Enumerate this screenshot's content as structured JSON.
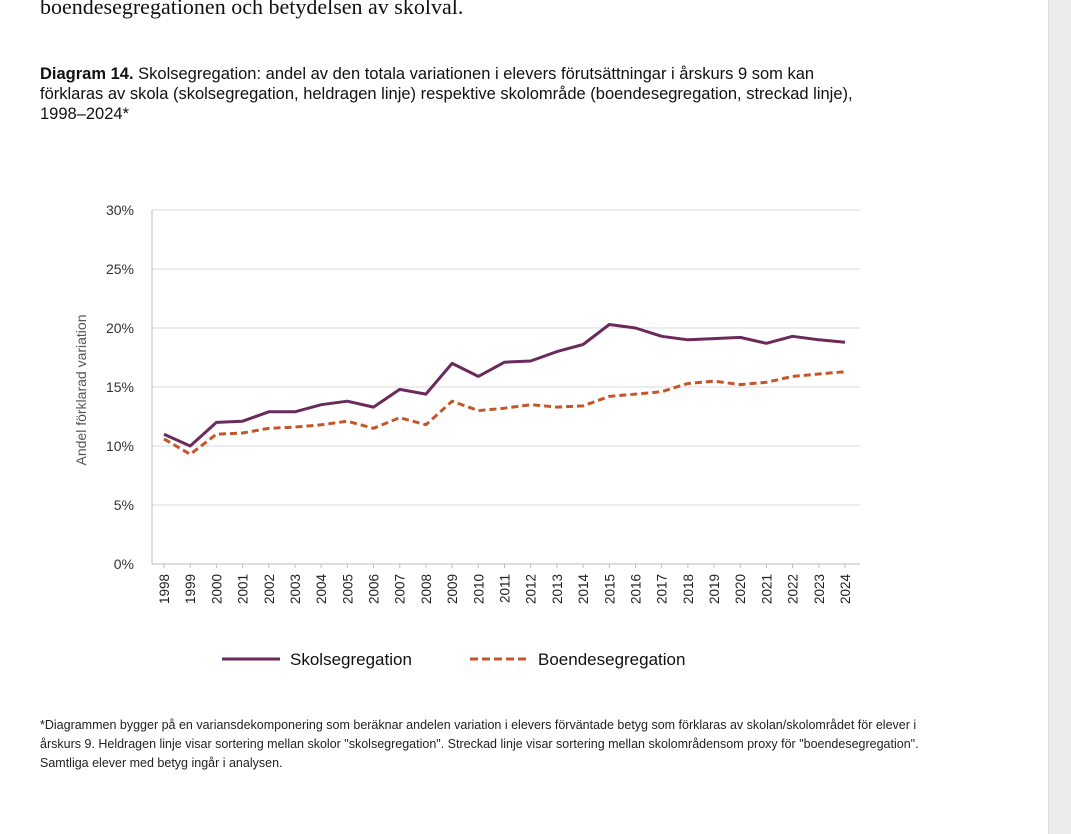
{
  "intro_text": "boendesegregationen och betydelsen av skolval.",
  "caption": {
    "label": "Diagram 14.",
    "text": "Skolsegregation: andel av den totala variationen i elevers förutsättningar i årskurs 9 som kan förklaras av skola (skolsegregation, heldragen linje) respektive skolområde (boendesegregation, streckad linje), 1998–2024*"
  },
  "footnote": "*Diagrammen bygger på en variansdekomponering som beräknar andelen variation i elevers förväntade betyg som förklaras av skolan/skolområdet för elever i årskurs 9. Heldragen linje visar sortering mellan skolor \"skolsegregation\". Streckad linje visar sortering mellan skolområdensom proxy för \"boendesegregation\". Samtliga elever med betyg ingår i analysen.",
  "chart_data": {
    "type": "line",
    "title": "",
    "xlabel": "",
    "ylabel": "Andel förklarad variation",
    "ylim": [
      0,
      30
    ],
    "y_ticks": [
      0,
      5,
      10,
      15,
      20,
      25,
      30
    ],
    "y_tick_labels": [
      "0%",
      "5%",
      "10%",
      "15%",
      "20%",
      "25%",
      "30%"
    ],
    "grid": true,
    "legend_position": "bottom",
    "categories": [
      "1998",
      "1999",
      "2000",
      "2001",
      "2002",
      "2003",
      "2004",
      "2005",
      "2006",
      "2007",
      "2008",
      "2009",
      "2010",
      "2011",
      "2012",
      "2013",
      "2014",
      "2015",
      "2016",
      "2017",
      "2018",
      "2019",
      "2020",
      "2021",
      "2022",
      "2023",
      "2024"
    ],
    "series": [
      {
        "name": "Skolsegregation",
        "style": "solid",
        "color": "#6b2a5c",
        "values": [
          11.0,
          10.0,
          12.0,
          12.1,
          12.9,
          12.9,
          13.5,
          13.8,
          13.3,
          14.8,
          14.4,
          17.0,
          15.9,
          17.1,
          17.2,
          18.0,
          18.6,
          20.3,
          20.0,
          19.3,
          19.0,
          19.1,
          19.2,
          18.7,
          19.3,
          19.0,
          18.8
        ]
      },
      {
        "name": "Boendesegregation",
        "style": "dashed",
        "color": "#c5562a",
        "values": [
          10.6,
          9.3,
          11.0,
          11.1,
          11.5,
          11.6,
          11.8,
          12.1,
          11.5,
          12.4,
          11.8,
          13.8,
          13.0,
          13.2,
          13.5,
          13.3,
          13.4,
          14.2,
          14.4,
          14.6,
          15.3,
          15.5,
          15.2,
          15.4,
          15.9,
          16.1,
          16.3
        ]
      }
    ]
  }
}
